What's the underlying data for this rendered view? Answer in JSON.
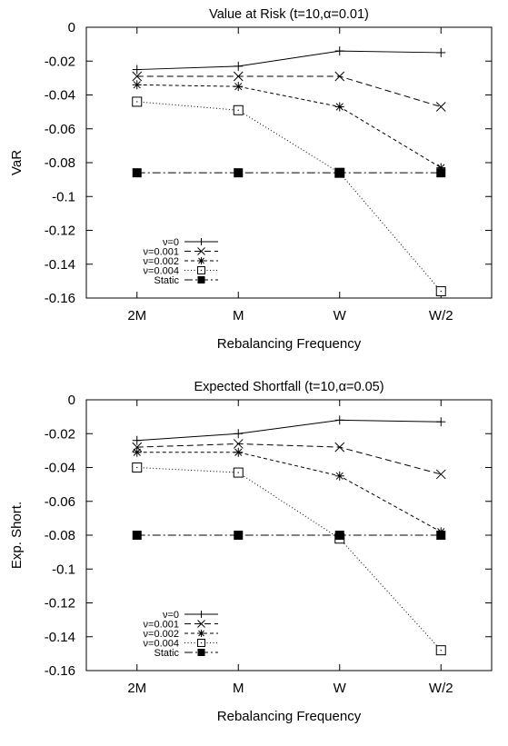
{
  "chart_data": [
    {
      "type": "line",
      "title": "Value at Risk (t=10,α=0.01)",
      "xlabel": "Rebalancing Frequency",
      "ylabel": "VaR",
      "categories": [
        "2M",
        "M",
        "W",
        "W/2"
      ],
      "ylim": [
        -0.16,
        0
      ],
      "yticks": [
        "0",
        "-0.02",
        "-0.04",
        "-0.06",
        "-0.08",
        "-0.1",
        "-0.12",
        "-0.14",
        "-0.16"
      ],
      "grid": false,
      "legend_position": "bottom-left",
      "series": [
        {
          "name": "ν=0",
          "marker": "plus",
          "dash": "solid",
          "values": [
            -0.025,
            -0.023,
            -0.014,
            -0.015
          ]
        },
        {
          "name": "ν=0.001",
          "marker": "cross",
          "dash": "dashed",
          "values": [
            -0.029,
            -0.029,
            -0.029,
            -0.047
          ]
        },
        {
          "name": "ν=0.002",
          "marker": "star",
          "dash": "short-dashed",
          "values": [
            -0.034,
            -0.035,
            -0.047,
            -0.083
          ]
        },
        {
          "name": "ν=0.004",
          "marker": "open-square",
          "dash": "dotted",
          "values": [
            -0.044,
            -0.049,
            -0.086,
            -0.156
          ]
        },
        {
          "name": "Static",
          "marker": "filled-square",
          "dash": "dash-dot",
          "values": [
            -0.086,
            -0.086,
            -0.086,
            -0.086
          ]
        }
      ]
    },
    {
      "type": "line",
      "title": "Expected Shortfall (t=10,α=0.05)",
      "xlabel": "Rebalancing Frequency",
      "ylabel": "Exp. Short.",
      "categories": [
        "2M",
        "M",
        "W",
        "W/2"
      ],
      "ylim": [
        -0.16,
        0
      ],
      "yticks": [
        "0",
        "-0.02",
        "-0.04",
        "-0.06",
        "-0.08",
        "-0.1",
        "-0.12",
        "-0.14",
        "-0.16"
      ],
      "grid": false,
      "legend_position": "bottom-left",
      "series": [
        {
          "name": "ν=0",
          "marker": "plus",
          "dash": "solid",
          "values": [
            -0.024,
            -0.02,
            -0.012,
            -0.013
          ]
        },
        {
          "name": "ν=0.001",
          "marker": "cross",
          "dash": "dashed",
          "values": [
            -0.028,
            -0.026,
            -0.028,
            -0.044
          ]
        },
        {
          "name": "ν=0.002",
          "marker": "star",
          "dash": "short-dashed",
          "values": [
            -0.031,
            -0.031,
            -0.045,
            -0.078
          ]
        },
        {
          "name": "ν=0.004",
          "marker": "open-square",
          "dash": "dotted",
          "values": [
            -0.04,
            -0.043,
            -0.082,
            -0.148
          ]
        },
        {
          "name": "Static",
          "marker": "filled-square",
          "dash": "dash-dot",
          "values": [
            -0.08,
            -0.08,
            -0.08,
            -0.08
          ]
        }
      ]
    }
  ]
}
